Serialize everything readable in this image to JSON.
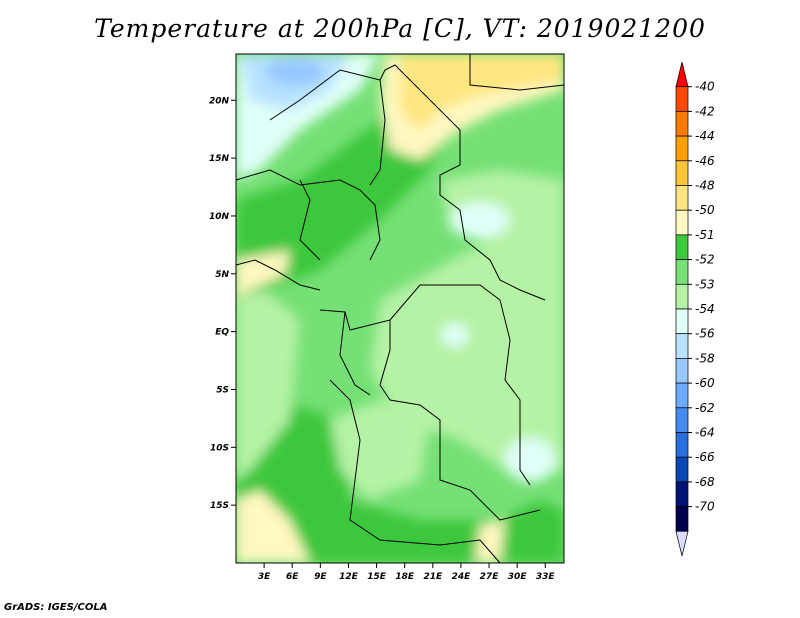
{
  "title": "Temperature at 200hPa [C], VT: 2019021200",
  "footer": "GrADS: IGES/COLA",
  "map": {
    "lon_range": [
      0,
      35
    ],
    "lat_range": [
      -20,
      24
    ],
    "lon_ticks": [
      "3E",
      "6E",
      "9E",
      "12E",
      "15E",
      "18E",
      "21E",
      "24E",
      "27E",
      "30E",
      "33E"
    ],
    "lon_tick_values": [
      3,
      6,
      9,
      12,
      15,
      18,
      21,
      24,
      27,
      30,
      33
    ],
    "lat_ticks": [
      "20N",
      "15N",
      "10N",
      "5N",
      "EQ",
      "5S",
      "10S",
      "15S"
    ],
    "lat_tick_values": [
      20,
      15,
      10,
      5,
      0,
      -5,
      -10,
      -15
    ]
  },
  "colorbar": {
    "labels": [
      "-40",
      "-42",
      "-44",
      "-46",
      "-48",
      "-50",
      "-51",
      "-52",
      "-53",
      "-54",
      "-56",
      "-58",
      "-60",
      "-62",
      "-64",
      "-66",
      "-68",
      "-70"
    ],
    "colors": [
      "#ff0000",
      "#ff4800",
      "#ff7a00",
      "#ffa000",
      "#ffc43a",
      "#ffe680",
      "#fff8c0",
      "#3dc73d",
      "#75e075",
      "#b5f2a5",
      "#e0fff8",
      "#b8e2ff",
      "#96c8ff",
      "#6eaaff",
      "#468cf0",
      "#286edc",
      "#0a46b4",
      "#001478",
      "#000050",
      "#dcdcff"
    ]
  },
  "legend_title": ""
}
